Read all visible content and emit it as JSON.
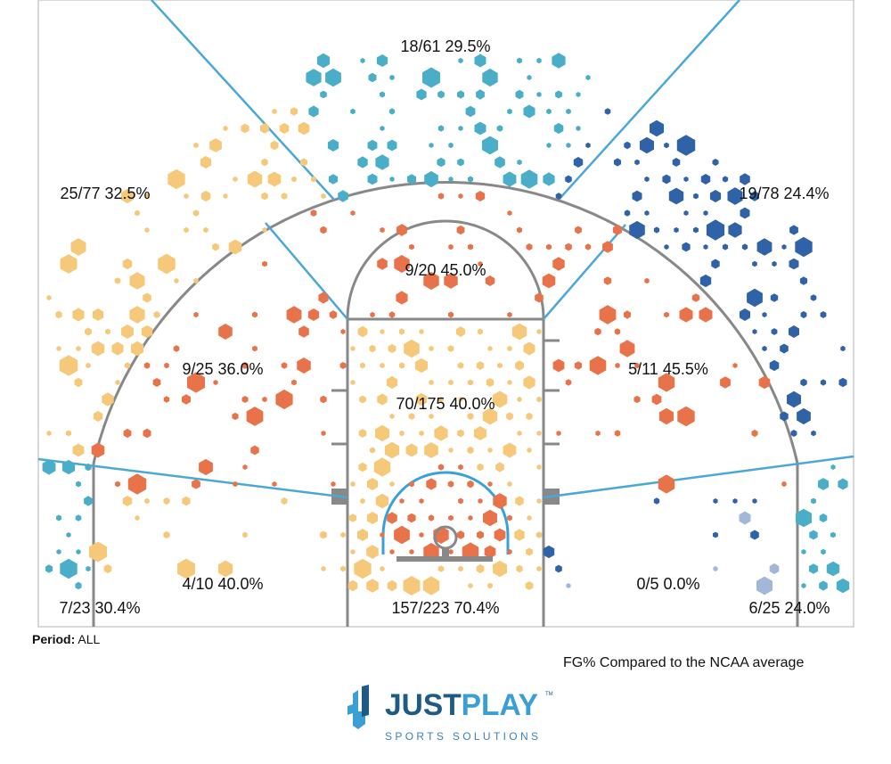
{
  "chart_data": {
    "type": "heatmap",
    "title": "FG% Compared to the NCAA average",
    "colors": {
      "above": "#e8734a",
      "slightly_below": "#f6c97a",
      "average": "#4aaec8",
      "below": "#2f62a6",
      "low_volume": "#a3b8d8"
    },
    "zones": [
      {
        "id": "three-top",
        "label": "18/61 29.5%",
        "made": 18,
        "att": 61,
        "pct": 29.5,
        "color": "#4aaec8"
      },
      {
        "id": "three-left-wing",
        "label": "25/77 32.5%",
        "made": 25,
        "att": 77,
        "pct": 32.5,
        "color": "#f6c97a"
      },
      {
        "id": "three-right-wing",
        "label": "19/78 24.4%",
        "made": 19,
        "att": 78,
        "pct": 24.4,
        "color": "#2f62a6"
      },
      {
        "id": "mid-top",
        "label": "9/20 45.0%",
        "made": 9,
        "att": 20,
        "pct": 45.0,
        "color": "#e8734a"
      },
      {
        "id": "mid-left-elbow",
        "label": "9/25 36.0%",
        "made": 9,
        "att": 25,
        "pct": 36.0,
        "color": "#e8734a"
      },
      {
        "id": "mid-right-elbow",
        "label": "5/11 45.5%",
        "made": 5,
        "att": 11,
        "pct": 45.5,
        "color": "#e8734a"
      },
      {
        "id": "paint",
        "label": "70/175 40.0%",
        "made": 70,
        "att": 175,
        "pct": 40.0,
        "color": "#f6c97a"
      },
      {
        "id": "mid-left-baseline",
        "label": "4/10 40.0%",
        "made": 4,
        "att": 10,
        "pct": 40.0,
        "color": "#f6c97a"
      },
      {
        "id": "mid-right-baseline",
        "label": "0/5 0.0%",
        "made": 0,
        "att": 5,
        "pct": 0.0,
        "color": "#2f62a6"
      },
      {
        "id": "restricted",
        "label": "157/223 70.4%",
        "made": 157,
        "att": 223,
        "pct": 70.4,
        "color": "#e8734a"
      },
      {
        "id": "three-left-corner",
        "label": "7/23 30.4%",
        "made": 7,
        "att": 23,
        "pct": 30.4,
        "color": "#4aaec8"
      },
      {
        "id": "three-right-corner",
        "label": "6/25 24.0%",
        "made": 6,
        "att": 25,
        "pct": 24.0,
        "color": "#4aaec8"
      }
    ]
  },
  "period": {
    "label": "Period:",
    "value": "ALL"
  },
  "logo": {
    "main1": "JUST",
    "main2": "PLAY",
    "sub": "SPORTS SOLUTIONS",
    "tm": "TM"
  }
}
